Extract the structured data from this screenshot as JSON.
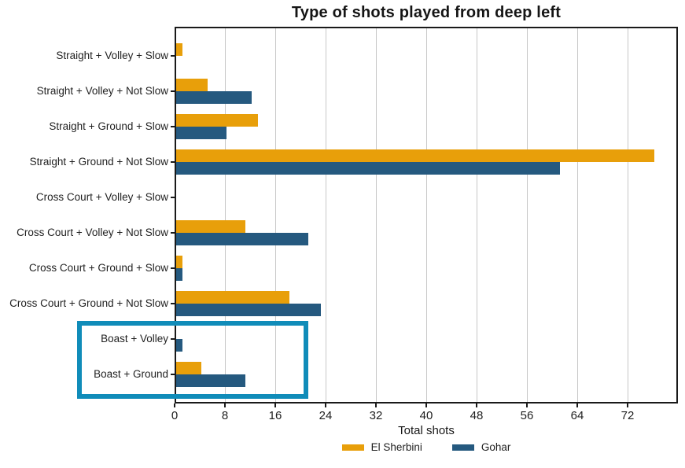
{
  "chart_data": {
    "type": "bar",
    "orientation": "horizontal",
    "title": "Type of shots played from deep left",
    "xlabel": "Total shots",
    "categories": [
      "Straight + Volley + Slow",
      "Straight + Volley + Not Slow",
      "Straight + Ground + Slow",
      "Straight + Ground + Not Slow",
      "Cross Court + Volley + Slow",
      "Cross Court + Volley + Not Slow",
      "Cross Court + Ground + Slow",
      "Cross Court + Ground + Not Slow",
      "Boast + Volley",
      "Boast + Ground"
    ],
    "series": [
      {
        "name": "El Sherbini",
        "color": "#E89F0A",
        "values": [
          1,
          5,
          13,
          76,
          0,
          11,
          1,
          18,
          0,
          4
        ]
      },
      {
        "name": "Gohar",
        "color": "#25597F",
        "values": [
          0,
          12,
          8,
          61,
          0,
          21,
          1,
          23,
          1,
          11
        ]
      }
    ],
    "xlim": [
      0,
      80
    ],
    "xticks": [
      0,
      8,
      16,
      24,
      32,
      40,
      48,
      56,
      64,
      72
    ],
    "grid": {
      "axis": "x",
      "color": "#c7c7c7"
    },
    "legend": {
      "position": "bottom-center",
      "entries": [
        "El Sherbini",
        "Gohar"
      ]
    },
    "annotations": {
      "highlight_box": {
        "categories": [
          "Boast + Volley",
          "Boast + Ground"
        ],
        "border_color": "#108CB9"
      }
    }
  }
}
